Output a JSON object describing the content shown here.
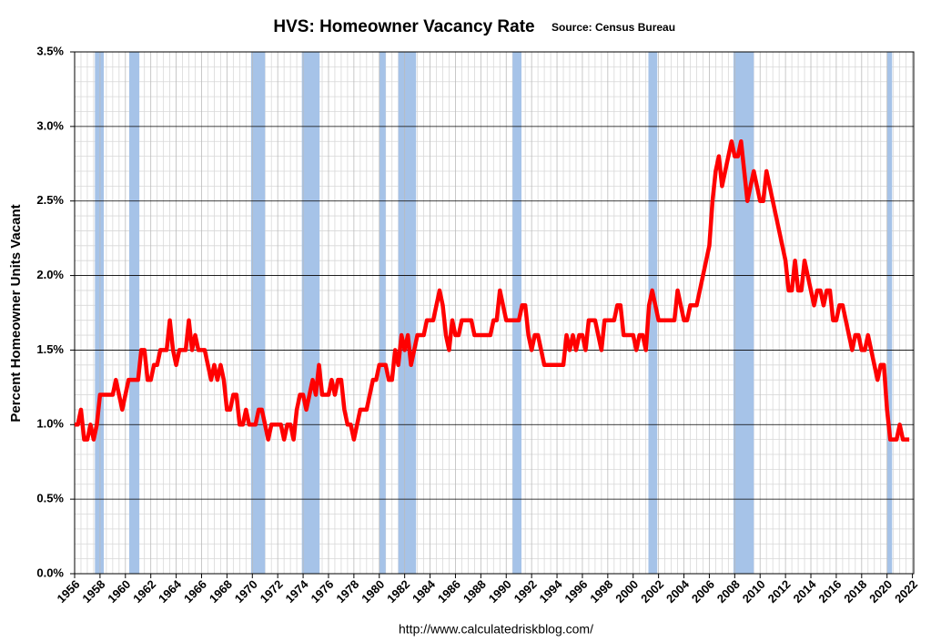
{
  "chart_data": {
    "type": "line",
    "title": "HVS: Homeowner Vacancy Rate",
    "subtitle": "Source: Census Bureau",
    "ylabel": "Percent Homeowner Units Vacant",
    "footer": "http://www.calculatedriskblog.com/",
    "xlim": [
      1956,
      2022.1
    ],
    "ylim": [
      0,
      3.5
    ],
    "xticks": [
      1956,
      1958,
      1960,
      1962,
      1964,
      1966,
      1968,
      1970,
      1972,
      1974,
      1976,
      1978,
      1980,
      1982,
      1984,
      1986,
      1988,
      1990,
      1992,
      1994,
      1996,
      1998,
      2000,
      2002,
      2004,
      2006,
      2008,
      2010,
      2012,
      2014,
      2016,
      2018,
      2020,
      2022
    ],
    "yticks": [
      {
        "value": 0,
        "label": "0.0%"
      },
      {
        "value": 0.5,
        "label": "0.5%"
      },
      {
        "value": 1,
        "label": "1.0%"
      },
      {
        "value": 1.5,
        "label": "1.5%"
      },
      {
        "value": 2,
        "label": "2.0%"
      },
      {
        "value": 2.5,
        "label": "2.5%"
      },
      {
        "value": 3,
        "label": "3.0%"
      },
      {
        "value": 3.5,
        "label": "3.5%"
      }
    ],
    "grid": true,
    "recession_color": "#a6c3e8",
    "recessions": [
      [
        1957.6,
        1958.3
      ],
      [
        1960.3,
        1961.1
      ],
      [
        1969.9,
        1971.0
      ],
      [
        1973.9,
        1975.3
      ],
      [
        1980.0,
        1980.5
      ],
      [
        1981.5,
        1982.9
      ],
      [
        1990.5,
        1991.2
      ],
      [
        2001.2,
        2001.9
      ],
      [
        2007.9,
        2009.5
      ],
      [
        2020.0,
        2020.4
      ]
    ],
    "series": [
      {
        "name": "Homeowner Vacancy Rate",
        "color": "#ff0000",
        "x": [
          1956,
          1956.25,
          1956.5,
          1956.75,
          1957,
          1957.25,
          1957.5,
          1957.75,
          1958,
          1958.25,
          1958.5,
          1958.75,
          1959,
          1959.25,
          1959.5,
          1959.75,
          1960,
          1960.25,
          1960.5,
          1960.75,
          1961,
          1961.25,
          1961.5,
          1961.75,
          1962,
          1962.25,
          1962.5,
          1962.75,
          1963,
          1963.25,
          1963.5,
          1963.75,
          1964,
          1964.25,
          1964.5,
          1964.75,
          1965,
          1965.25,
          1965.5,
          1965.75,
          1966,
          1966.25,
          1966.5,
          1966.75,
          1967,
          1967.25,
          1967.5,
          1967.75,
          1968,
          1968.25,
          1968.5,
          1968.75,
          1969,
          1969.25,
          1969.5,
          1969.75,
          1970,
          1970.25,
          1970.5,
          1970.75,
          1971,
          1971.25,
          1971.5,
          1971.75,
          1972,
          1972.25,
          1972.5,
          1972.75,
          1973,
          1973.25,
          1973.5,
          1973.75,
          1974,
          1974.25,
          1974.5,
          1974.75,
          1975,
          1975.25,
          1975.5,
          1975.75,
          1976,
          1976.25,
          1976.5,
          1976.75,
          1977,
          1977.25,
          1977.5,
          1977.75,
          1978,
          1978.25,
          1978.5,
          1978.75,
          1979,
          1979.25,
          1979.5,
          1979.75,
          1980,
          1980.25,
          1980.5,
          1980.75,
          1981,
          1981.25,
          1981.5,
          1981.75,
          1982,
          1982.25,
          1982.5,
          1982.75,
          1983,
          1983.25,
          1983.5,
          1983.75,
          1984,
          1984.25,
          1984.5,
          1984.75,
          1985,
          1985.25,
          1985.5,
          1985.75,
          1986,
          1986.25,
          1986.5,
          1986.75,
          1987,
          1987.25,
          1987.5,
          1987.75,
          1988,
          1988.25,
          1988.5,
          1988.75,
          1989,
          1989.25,
          1989.5,
          1989.75,
          1990,
          1990.25,
          1990.5,
          1990.75,
          1991,
          1991.25,
          1991.5,
          1991.75,
          1992,
          1992.25,
          1992.5,
          1992.75,
          1993,
          1993.25,
          1993.5,
          1993.75,
          1994,
          1994.25,
          1994.5,
          1994.75,
          1995,
          1995.25,
          1995.5,
          1995.75,
          1996,
          1996.25,
          1996.5,
          1996.75,
          1997,
          1997.25,
          1997.5,
          1997.75,
          1998,
          1998.25,
          1998.5,
          1998.75,
          1999,
          1999.25,
          1999.5,
          1999.75,
          2000,
          2000.25,
          2000.5,
          2000.75,
          2001,
          2001.25,
          2001.5,
          2001.75,
          2002,
          2002.25,
          2002.5,
          2002.75,
          2003,
          2003.25,
          2003.5,
          2003.75,
          2004,
          2004.25,
          2004.5,
          2004.75,
          2005,
          2005.25,
          2005.5,
          2005.75,
          2006,
          2006.25,
          2006.5,
          2006.75,
          2007,
          2007.25,
          2007.5,
          2007.75,
          2008,
          2008.25,
          2008.5,
          2008.75,
          2009,
          2009.25,
          2009.5,
          2009.75,
          2010,
          2010.25,
          2010.5,
          2010.75,
          2011,
          2011.25,
          2011.5,
          2011.75,
          2012,
          2012.25,
          2012.5,
          2012.75,
          2013,
          2013.25,
          2013.5,
          2013.75,
          2014,
          2014.25,
          2014.5,
          2014.75,
          2015,
          2015.25,
          2015.5,
          2015.75,
          2016,
          2016.25,
          2016.5,
          2016.75,
          2017,
          2017.25,
          2017.5,
          2017.75,
          2018,
          2018.25,
          2018.5,
          2018.75,
          2019,
          2019.25,
          2019.5,
          2019.75,
          2020,
          2020.25,
          2020.5,
          2020.75,
          2021,
          2021.25,
          2021.5,
          2021.75
        ],
        "values": [
          1.0,
          1.0,
          1.1,
          0.9,
          0.9,
          1.0,
          0.9,
          1.0,
          1.2,
          1.2,
          1.2,
          1.2,
          1.2,
          1.3,
          1.2,
          1.1,
          1.2,
          1.3,
          1.3,
          1.3,
          1.3,
          1.5,
          1.5,
          1.3,
          1.3,
          1.4,
          1.4,
          1.5,
          1.5,
          1.5,
          1.7,
          1.5,
          1.4,
          1.5,
          1.5,
          1.5,
          1.7,
          1.5,
          1.6,
          1.5,
          1.5,
          1.5,
          1.4,
          1.3,
          1.4,
          1.3,
          1.4,
          1.3,
          1.1,
          1.1,
          1.2,
          1.2,
          1.0,
          1.0,
          1.1,
          1.0,
          1.0,
          1.0,
          1.1,
          1.1,
          1.0,
          0.9,
          1.0,
          1.0,
          1.0,
          1.0,
          0.9,
          1.0,
          1.0,
          0.9,
          1.1,
          1.2,
          1.2,
          1.1,
          1.2,
          1.3,
          1.2,
          1.4,
          1.2,
          1.2,
          1.2,
          1.3,
          1.2,
          1.3,
          1.3,
          1.1,
          1.0,
          1.0,
          0.9,
          1.0,
          1.1,
          1.1,
          1.1,
          1.2,
          1.3,
          1.3,
          1.4,
          1.4,
          1.4,
          1.3,
          1.3,
          1.5,
          1.4,
          1.6,
          1.5,
          1.6,
          1.4,
          1.5,
          1.6,
          1.6,
          1.6,
          1.7,
          1.7,
          1.7,
          1.8,
          1.9,
          1.8,
          1.6,
          1.5,
          1.7,
          1.6,
          1.6,
          1.7,
          1.7,
          1.7,
          1.7,
          1.6,
          1.6,
          1.6,
          1.6,
          1.6,
          1.6,
          1.7,
          1.7,
          1.9,
          1.8,
          1.7,
          1.7,
          1.7,
          1.7,
          1.7,
          1.8,
          1.8,
          1.6,
          1.5,
          1.6,
          1.6,
          1.5,
          1.4,
          1.4,
          1.4,
          1.4,
          1.4,
          1.4,
          1.4,
          1.6,
          1.5,
          1.6,
          1.5,
          1.6,
          1.6,
          1.5,
          1.7,
          1.7,
          1.7,
          1.6,
          1.5,
          1.7,
          1.7,
          1.7,
          1.7,
          1.8,
          1.8,
          1.6,
          1.6,
          1.6,
          1.6,
          1.5,
          1.6,
          1.6,
          1.5,
          1.8,
          1.9,
          1.8,
          1.7,
          1.7,
          1.7,
          1.7,
          1.7,
          1.7,
          1.9,
          1.8,
          1.7,
          1.7,
          1.8,
          1.8,
          1.8,
          1.9,
          2.0,
          2.1,
          2.2,
          2.5,
          2.7,
          2.8,
          2.6,
          2.7,
          2.8,
          2.9,
          2.8,
          2.8,
          2.9,
          2.7,
          2.5,
          2.6,
          2.7,
          2.6,
          2.5,
          2.5,
          2.7,
          2.6,
          2.5,
          2.4,
          2.3,
          2.2,
          2.1,
          1.9,
          1.9,
          2.1,
          1.9,
          1.9,
          2.1,
          2.0,
          1.9,
          1.8,
          1.9,
          1.9,
          1.8,
          1.9,
          1.9,
          1.7,
          1.7,
          1.8,
          1.8,
          1.7,
          1.6,
          1.5,
          1.6,
          1.6,
          1.5,
          1.5,
          1.6,
          1.5,
          1.4,
          1.3,
          1.4,
          1.4,
          1.1,
          0.9,
          0.9,
          0.9,
          1.0,
          0.9,
          0.9,
          0.9
        ]
      }
    ]
  }
}
